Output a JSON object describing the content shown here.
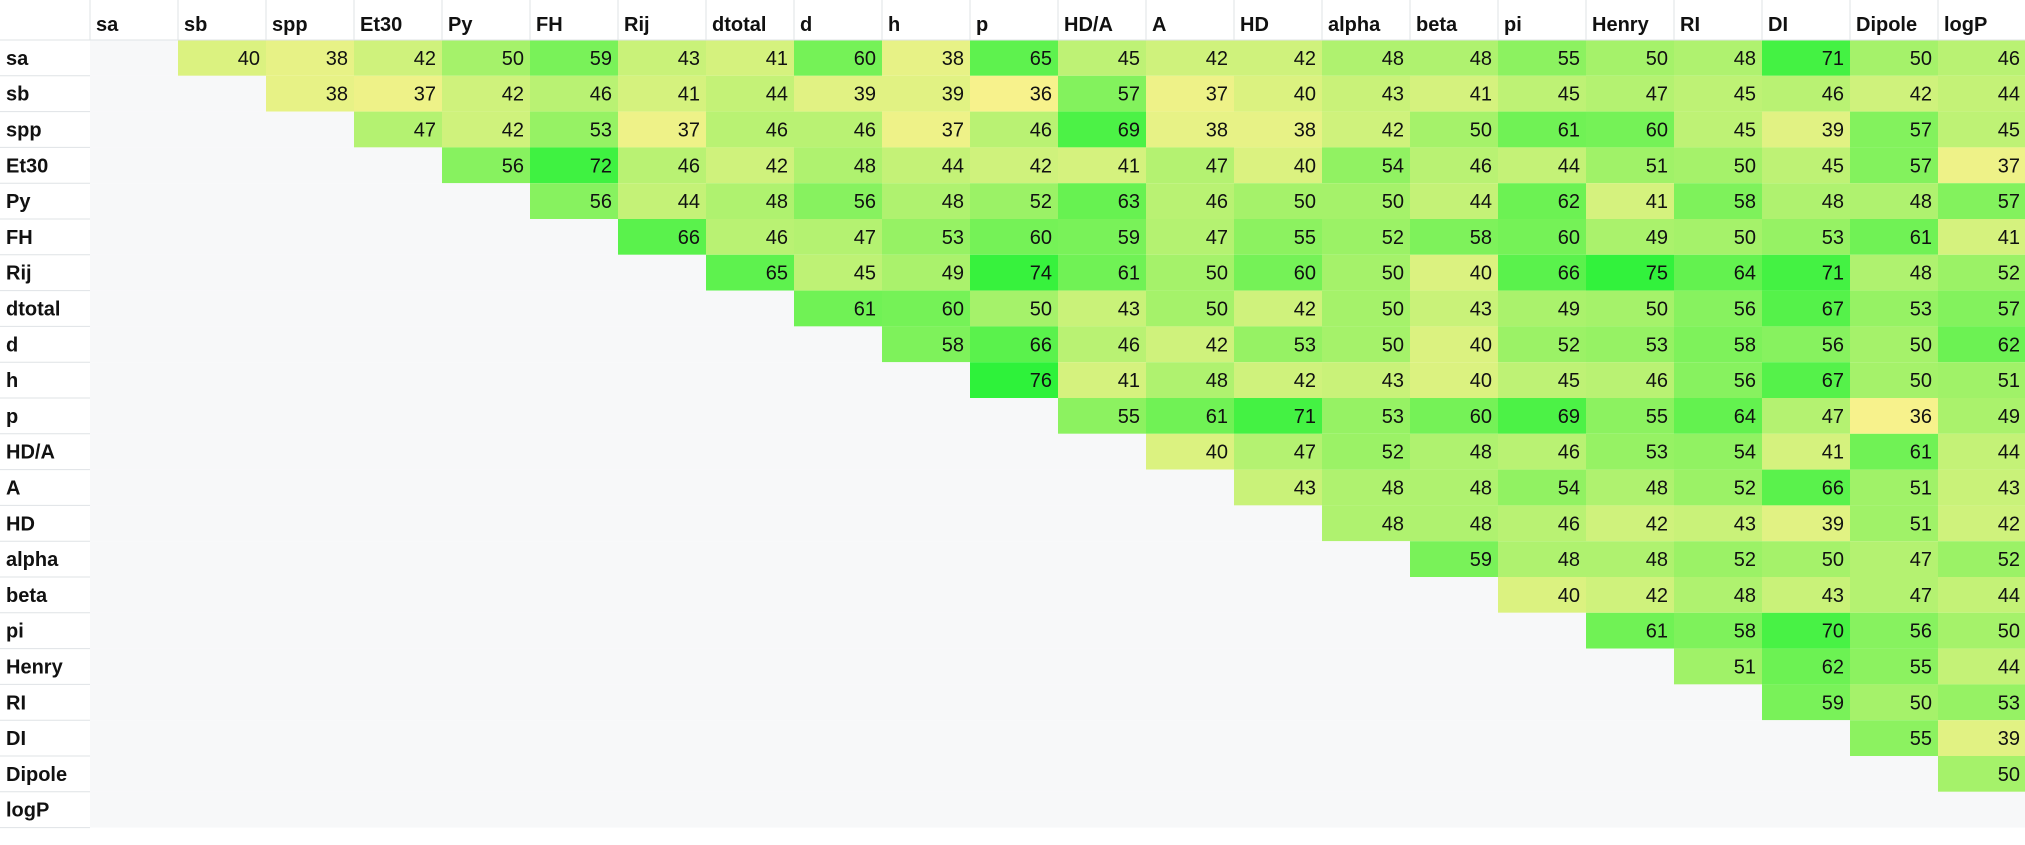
{
  "chart_data": {
    "type": "heatmap",
    "title": "",
    "xlabel": "",
    "ylabel": "",
    "columns": [
      "sa",
      "sb",
      "spp",
      "Et30",
      "Py",
      "FH",
      "Rij",
      "dtotal",
      "d",
      "h",
      "p",
      "HD/A",
      "A",
      "HD",
      "alpha",
      "beta",
      "pi",
      "Henry",
      "RI",
      "DI",
      "Dipole",
      "logP"
    ],
    "rows": [
      "sa",
      "sb",
      "spp",
      "Et30",
      "Py",
      "FH",
      "Rij",
      "dtotal",
      "d",
      "h",
      "p",
      "HD/A",
      "A",
      "HD",
      "alpha",
      "beta",
      "pi",
      "Henry",
      "RI",
      "DI",
      "Dipole",
      "logP"
    ],
    "matrix": [
      [
        null,
        40,
        38,
        42,
        50,
        59,
        43,
        41,
        60,
        38,
        65,
        45,
        42,
        42,
        48,
        48,
        55,
        50,
        48,
        71,
        50,
        46
      ],
      [
        null,
        null,
        38,
        37,
        42,
        46,
        41,
        44,
        39,
        39,
        36,
        57,
        37,
        40,
        43,
        41,
        45,
        47,
        45,
        46,
        42,
        44
      ],
      [
        null,
        null,
        null,
        47,
        42,
        53,
        37,
        46,
        46,
        37,
        46,
        69,
        38,
        38,
        42,
        50,
        61,
        60,
        45,
        39,
        57,
        45
      ],
      [
        null,
        null,
        null,
        null,
        56,
        72,
        46,
        42,
        48,
        44,
        42,
        41,
        47,
        40,
        54,
        46,
        44,
        51,
        50,
        45,
        57,
        37
      ],
      [
        null,
        null,
        null,
        null,
        null,
        56,
        44,
        48,
        56,
        48,
        52,
        63,
        46,
        50,
        50,
        44,
        62,
        41,
        58,
        48,
        48,
        57
      ],
      [
        null,
        null,
        null,
        null,
        null,
        null,
        66,
        46,
        47,
        53,
        60,
        59,
        47,
        55,
        52,
        58,
        60,
        49,
        50,
        53,
        61,
        41
      ],
      [
        null,
        null,
        null,
        null,
        null,
        null,
        null,
        65,
        45,
        49,
        74,
        61,
        50,
        60,
        50,
        40,
        66,
        75,
        64,
        71,
        48,
        52
      ],
      [
        null,
        null,
        null,
        null,
        null,
        null,
        null,
        null,
        61,
        60,
        50,
        43,
        50,
        42,
        50,
        43,
        49,
        50,
        56,
        67,
        53,
        57
      ],
      [
        null,
        null,
        null,
        null,
        null,
        null,
        null,
        null,
        null,
        58,
        66,
        46,
        42,
        53,
        50,
        40,
        52,
        53,
        58,
        56,
        50,
        62
      ],
      [
        null,
        null,
        null,
        null,
        null,
        null,
        null,
        null,
        null,
        null,
        76,
        41,
        48,
        42,
        43,
        40,
        45,
        46,
        56,
        67,
        50,
        51
      ],
      [
        null,
        null,
        null,
        null,
        null,
        null,
        null,
        null,
        null,
        null,
        null,
        55,
        61,
        71,
        53,
        60,
        69,
        55,
        64,
        47,
        36,
        49
      ],
      [
        null,
        null,
        null,
        null,
        null,
        null,
        null,
        null,
        null,
        null,
        null,
        null,
        40,
        47,
        52,
        48,
        46,
        53,
        54,
        41,
        61,
        44
      ],
      [
        null,
        null,
        null,
        null,
        null,
        null,
        null,
        null,
        null,
        null,
        null,
        null,
        null,
        43,
        48,
        48,
        54,
        48,
        52,
        66,
        51,
        43
      ],
      [
        null,
        null,
        null,
        null,
        null,
        null,
        null,
        null,
        null,
        null,
        null,
        null,
        null,
        null,
        48,
        48,
        46,
        42,
        43,
        39,
        51,
        42
      ],
      [
        null,
        null,
        null,
        null,
        null,
        null,
        null,
        null,
        null,
        null,
        null,
        null,
        null,
        null,
        null,
        59,
        48,
        48,
        52,
        50,
        47,
        52
      ],
      [
        null,
        null,
        null,
        null,
        null,
        null,
        null,
        null,
        null,
        null,
        null,
        null,
        null,
        null,
        null,
        null,
        40,
        42,
        48,
        43,
        47,
        44
      ],
      [
        null,
        null,
        null,
        null,
        null,
        null,
        null,
        null,
        null,
        null,
        null,
        null,
        null,
        null,
        null,
        null,
        null,
        61,
        58,
        70,
        56,
        50
      ],
      [
        null,
        null,
        null,
        null,
        null,
        null,
        null,
        null,
        null,
        null,
        null,
        null,
        null,
        null,
        null,
        null,
        null,
        null,
        51,
        62,
        55,
        44
      ],
      [
        null,
        null,
        null,
        null,
        null,
        null,
        null,
        null,
        null,
        null,
        null,
        null,
        null,
        null,
        null,
        null,
        null,
        null,
        null,
        59,
        50,
        53
      ],
      [
        null,
        null,
        null,
        null,
        null,
        null,
        null,
        null,
        null,
        null,
        null,
        null,
        null,
        null,
        null,
        null,
        null,
        null,
        null,
        null,
        55,
        39
      ],
      [
        null,
        null,
        null,
        null,
        null,
        null,
        null,
        null,
        null,
        null,
        null,
        null,
        null,
        null,
        null,
        null,
        null,
        null,
        null,
        null,
        null,
        50
      ],
      [
        null,
        null,
        null,
        null,
        null,
        null,
        null,
        null,
        null,
        null,
        null,
        null,
        null,
        null,
        null,
        null,
        null,
        null,
        null,
        null,
        null,
        null
      ]
    ],
    "value_range": [
      36,
      76
    ],
    "color_scale": {
      "low": "#f7f28c",
      "high": "#2ef23a"
    },
    "empty_cell_color": "#f7f8f9",
    "grid_line_color": "#dfe3e6"
  }
}
